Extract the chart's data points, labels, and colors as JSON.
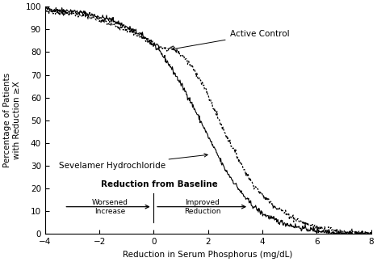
{
  "xlabel": "Reduction in Serum Phosphorus (mg/dL)",
  "ylabel": "Percentage of Patients\nwith Reduction ≥X",
  "xlim": [
    -4,
    8
  ],
  "ylim": [
    0,
    100
  ],
  "xticks": [
    -4,
    -2,
    0,
    2,
    4,
    6,
    8
  ],
  "yticks": [
    0,
    10,
    20,
    30,
    40,
    50,
    60,
    70,
    80,
    90,
    100
  ],
  "annotation_active_control": "Active Control",
  "annotation_sevelamer": "Sevelamer Hydrochloride",
  "annotation_reduction": "Reduction from Baseline",
  "annotation_worsened": "Worsened\nIncrease",
  "annotation_improved": "Improved\nReduction",
  "line_color": "#000000",
  "bg_color": "#ffffff",
  "sev_x": [
    -4,
    -3.5,
    -3,
    -2.5,
    -2,
    -1.5,
    -1,
    -0.5,
    0,
    0.3,
    0.6,
    0.9,
    1.2,
    1.5,
    1.8,
    2.0,
    2.3,
    2.6,
    3.0,
    3.3,
    3.6,
    4.0,
    4.5,
    5.0,
    5.5,
    6.0,
    6.5,
    7.0,
    7.5,
    8.0
  ],
  "sev_y": [
    99,
    98.5,
    98,
    97,
    95.5,
    94,
    91,
    88,
    83,
    79,
    74,
    68,
    62,
    55,
    48,
    43,
    36,
    29,
    22,
    17,
    13,
    9,
    6,
    4,
    2.5,
    1.5,
    0.8,
    0.3,
    0.1,
    0
  ],
  "ac_x": [
    -4,
    -3.5,
    -3,
    -2.5,
    -2,
    -1.5,
    -1,
    -0.5,
    0,
    0.3,
    0.5,
    0.7,
    0.9,
    1.1,
    1.3,
    1.5,
    1.8,
    2.0,
    2.3,
    2.6,
    3.0,
    3.3,
    3.6,
    4.0,
    4.5,
    5.0,
    5.5,
    6.0,
    6.5,
    7.0,
    7.5,
    8.0
  ],
  "ac_y": [
    98,
    97.5,
    97,
    96,
    94,
    92,
    90,
    87,
    84,
    82,
    81,
    82,
    80,
    78,
    75,
    72,
    66,
    61,
    53,
    45,
    36,
    29,
    23,
    17,
    12,
    8,
    5,
    3,
    2,
    1,
    0.5,
    0
  ]
}
